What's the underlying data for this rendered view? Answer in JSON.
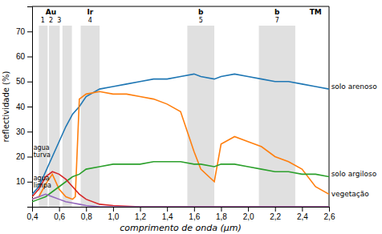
{
  "chart_data": {
    "type": "line",
    "xlabel": "comprimento de onda (μm)",
    "ylabel": "reflectividade (%)",
    "xlim": [
      0.4,
      2.6
    ],
    "ylim": [
      0,
      80
    ],
    "xticks": [
      {
        "value": 0.4,
        "label": "0,4"
      },
      {
        "value": 0.6,
        "label": "0,6"
      },
      {
        "value": 0.8,
        "label": "0,8"
      },
      {
        "value": 1.0,
        "label": "1,0"
      },
      {
        "value": 1.2,
        "label": "1,2"
      },
      {
        "value": 1.4,
        "label": "1,4"
      },
      {
        "value": 1.6,
        "label": "1,6"
      },
      {
        "value": 1.8,
        "label": "1,8"
      },
      {
        "value": 2.0,
        "label": "2,0"
      },
      {
        "value": 2.2,
        "label": "2,2"
      },
      {
        "value": 2.4,
        "label": "2,4"
      },
      {
        "value": 2.6,
        "label": "2,6"
      }
    ],
    "yticks": [
      10,
      20,
      30,
      40,
      50,
      60,
      70
    ],
    "bands": [
      {
        "xmin": 0.45,
        "xmax": 0.515
      },
      {
        "xmin": 0.525,
        "xmax": 0.605
      },
      {
        "xmin": 0.625,
        "xmax": 0.695
      },
      {
        "xmin": 0.76,
        "xmax": 0.9
      },
      {
        "xmin": 1.55,
        "xmax": 1.75
      },
      {
        "xmin": 2.08,
        "xmax": 2.35
      }
    ],
    "band_labels": [
      {
        "text": "Au",
        "x": 0.54,
        "sub": "1  2  3"
      },
      {
        "text": "Ir",
        "x": 0.83,
        "sub": "4"
      },
      {
        "text": "b",
        "x": 1.65,
        "sub": "5"
      },
      {
        "text": "b",
        "x": 2.215,
        "sub": "7"
      },
      {
        "text": "TM",
        "x": 2.5
      }
    ],
    "series": [
      {
        "x": [
          0.4,
          0.45,
          0.5,
          0.55,
          0.6,
          0.65,
          0.7,
          0.75,
          0.8,
          0.9,
          1.0,
          1.1,
          1.2,
          1.3,
          1.4,
          1.5,
          1.6,
          1.65,
          1.75,
          1.8,
          1.9,
          2.0,
          2.1,
          2.2,
          2.3,
          2.4,
          2.5,
          2.6
        ],
        "values": [
          5,
          8,
          14,
          20,
          26,
          32,
          37,
          40,
          44,
          47,
          48,
          49,
          50,
          51,
          51,
          52,
          53,
          52,
          51,
          52,
          53,
          52,
          51,
          50,
          50,
          49,
          48,
          47
        ]
      },
      {
        "x": [
          0.4,
          0.45,
          0.5,
          0.55,
          0.6,
          0.65,
          0.7,
          0.72,
          0.75,
          0.8,
          0.9,
          1.0,
          1.1,
          1.2,
          1.3,
          1.4,
          1.5,
          1.6,
          1.65,
          1.75,
          1.8,
          1.9,
          2.0,
          2.1,
          2.2,
          2.3,
          2.4,
          2.5,
          2.6
        ],
        "values": [
          3,
          4,
          9,
          13,
          7,
          4,
          3,
          4,
          43,
          45,
          46,
          45,
          45,
          44,
          43,
          41,
          38,
          22,
          15,
          10,
          25,
          28,
          26,
          24,
          20,
          18,
          15,
          8,
          5
        ]
      },
      {
        "x": [
          0.4,
          0.45,
          0.5,
          0.55,
          0.6,
          0.65,
          0.7,
          0.75,
          0.8,
          0.9,
          1.0,
          1.1,
          1.2,
          1.3,
          1.4,
          1.5,
          1.6,
          1.65,
          1.75,
          1.8,
          1.9,
          2.0,
          2.1,
          2.2,
          2.3,
          2.4,
          2.5,
          2.6
        ],
        "values": [
          2,
          3,
          4,
          6,
          8,
          10,
          12,
          13,
          15,
          16,
          17,
          17,
          17,
          18,
          18,
          18,
          17,
          17,
          16,
          17,
          17,
          16,
          15,
          14,
          14,
          13,
          13,
          12
        ]
      },
      {
        "x": [
          0.4,
          0.45,
          0.5,
          0.55,
          0.6,
          0.65,
          0.7,
          0.75,
          0.8,
          0.9,
          1.0,
          1.2,
          1.6,
          2.0,
          2.6
        ],
        "values": [
          4,
          7,
          12,
          14,
          13,
          11,
          8,
          5,
          3,
          1,
          0.5,
          0,
          0,
          0,
          0
        ]
      },
      {
        "x": [
          0.4,
          0.45,
          0.5,
          0.55,
          0.6,
          0.65,
          0.7,
          0.75,
          0.8,
          0.9,
          1.0,
          1.2,
          1.6,
          2.0,
          2.6
        ],
        "values": [
          3,
          4,
          5,
          4,
          3,
          2,
          1.5,
          1,
          0.5,
          0,
          0,
          0,
          0,
          0,
          0
        ]
      }
    ],
    "annotations": [
      {
        "text": "solo arenoso",
        "x": 2.58,
        "y": 48
      },
      {
        "text": "solo argiloso",
        "x": 2.58,
        "y": 13
      },
      {
        "text": "vegetação",
        "x": 2.58,
        "y": 5
      },
      {
        "text": "agua\nturva",
        "x": 0.41,
        "y": 22
      },
      {
        "text": "agua\nlimpa",
        "x": 0.41,
        "y": 10
      }
    ]
  }
}
